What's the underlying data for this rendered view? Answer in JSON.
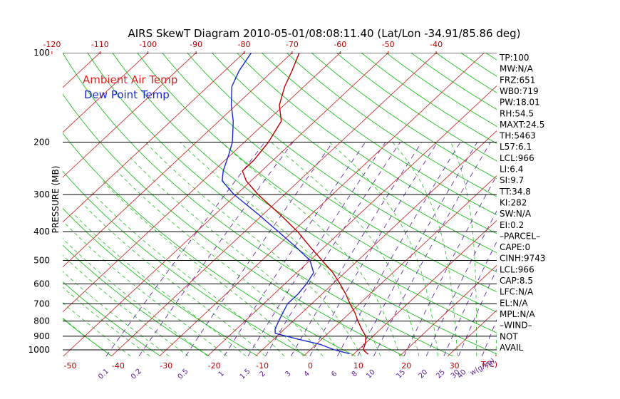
{
  "chart_data": {
    "type": "line",
    "title": "AIRS SkewT Diagram 2010-05-01/08:08:11.40 (Lat/Lon -34.91/85.86 deg)",
    "ylabel": "PRESSURE (MB)",
    "xlabel": "T(C)",
    "mixing_ratio_label": "w(g/kg)",
    "y_scale": "log",
    "ylim": [
      1050,
      100
    ],
    "xlim": [
      -52,
      43
    ],
    "pressure_ticks": [
      100,
      200,
      300,
      400,
      500,
      600,
      700,
      800,
      900,
      1000
    ],
    "pressure_tick_labels": [
      "100",
      "200",
      "300",
      "400",
      "500",
      "600",
      "700",
      "800",
      "900",
      "1000"
    ],
    "temp_ticks_bottom": [
      -50,
      -40,
      -30,
      -20,
      -10,
      0,
      10,
      20,
      30
    ],
    "temp_tick_labels_bottom": [
      "-50",
      "-40",
      "-30",
      "-20",
      "-10",
      "0",
      "10",
      "20",
      "30"
    ],
    "temp_ticks_top": [
      -120,
      -110,
      -100,
      -90,
      -80,
      -70,
      -60,
      -50,
      -40
    ],
    "temp_tick_labels_top": [
      "-120",
      "-110",
      "-100",
      "-90",
      "-80",
      "-70",
      "-60",
      "-50",
      "-40"
    ],
    "mixing_ratio_values": [
      0.1,
      0.2,
      0.5,
      1,
      1.5,
      2,
      3,
      4,
      6,
      8,
      10,
      15,
      20,
      25,
      30,
      40
    ],
    "mixing_ratio_labels": [
      "0.1",
      "0.2",
      "0.5",
      "1",
      "1.5",
      "2",
      "3",
      "4",
      "6",
      "8",
      "10",
      "15",
      "20",
      "25",
      "30",
      "40"
    ],
    "legend": [
      {
        "label": "Ambient Air Temp",
        "color": "#e02020"
      },
      {
        "label": "Dew Point Temp",
        "color": "#1a2ad0"
      }
    ],
    "series": [
      {
        "name": "Ambient Air Temp",
        "color": "#c00000",
        "points": [
          {
            "p": 1035,
            "t": 13
          },
          {
            "p": 1000,
            "t": 11
          },
          {
            "p": 950,
            "t": 10
          },
          {
            "p": 900,
            "t": 8.5
          },
          {
            "p": 850,
            "t": 6
          },
          {
            "p": 800,
            "t": 3.5
          },
          {
            "p": 750,
            "t": 1
          },
          {
            "p": 700,
            "t": -2
          },
          {
            "p": 650,
            "t": -5
          },
          {
            "p": 600,
            "t": -8.5
          },
          {
            "p": 550,
            "t": -12.5
          },
          {
            "p": 500,
            "t": -17.5
          },
          {
            "p": 450,
            "t": -23
          },
          {
            "p": 400,
            "t": -29
          },
          {
            "p": 350,
            "t": -36.5
          },
          {
            "p": 300,
            "t": -45.5
          },
          {
            "p": 270,
            "t": -51
          },
          {
            "p": 250,
            "t": -54
          },
          {
            "p": 230,
            "t": -54
          },
          {
            "p": 200,
            "t": -55
          },
          {
            "p": 170,
            "t": -57
          },
          {
            "p": 150,
            "t": -61
          },
          {
            "p": 130,
            "t": -64
          },
          {
            "p": 115,
            "t": -66
          },
          {
            "p": 100,
            "t": -68.5
          }
        ]
      },
      {
        "name": "Dew Point Temp",
        "color": "#1a2ad0",
        "points": [
          {
            "p": 1030,
            "t": 9
          },
          {
            "p": 1000,
            "t": 5
          },
          {
            "p": 960,
            "t": 1
          },
          {
            "p": 920,
            "t": -5
          },
          {
            "p": 880,
            "t": -11
          },
          {
            "p": 850,
            "t": -12
          },
          {
            "p": 800,
            "t": -13
          },
          {
            "p": 750,
            "t": -14
          },
          {
            "p": 700,
            "t": -15
          },
          {
            "p": 650,
            "t": -15
          },
          {
            "p": 600,
            "t": -15.5
          },
          {
            "p": 550,
            "t": -16.5
          },
          {
            "p": 500,
            "t": -20
          },
          {
            "p": 450,
            "t": -26
          },
          {
            "p": 400,
            "t": -33
          },
          {
            "p": 350,
            "t": -41
          },
          {
            "p": 300,
            "t": -50.5
          },
          {
            "p": 270,
            "t": -56
          },
          {
            "p": 250,
            "t": -58
          },
          {
            "p": 220,
            "t": -60.5
          },
          {
            "p": 200,
            "t": -62.5
          },
          {
            "p": 170,
            "t": -67
          },
          {
            "p": 150,
            "t": -71
          },
          {
            "p": 130,
            "t": -75
          },
          {
            "p": 115,
            "t": -77
          },
          {
            "p": 100,
            "t": -78.5
          }
        ]
      }
    ],
    "indices": [
      "TP:100",
      "MW:N/A",
      "FRZ:651",
      "WB0:719",
      "PW:18.01",
      "RH:54.5",
      "MAXT:24.5",
      "TH:5463",
      "L57:6.1",
      "LCL:966",
      "LI:6.4",
      "SI:9.7",
      "TT:34.8",
      "KI:282",
      "SW:N/A",
      "EI:0.2",
      "–PARCEL–",
      "CAPE:0",
      "CINH:9743",
      "LCL:966",
      "CAP:8.5",
      "LFC:N/A",
      "EL:N/A",
      "MPL:N/A",
      "–WIND–",
      "NOT",
      "AVAIL"
    ],
    "colors": {
      "temperature": "#c00000",
      "dewpoint": "#1a2ad0",
      "isotherms": "#d03030",
      "dry_adiabats": "#20c020",
      "moist_adiabats": "#20c020",
      "mixing_ratio": "#6a2ab0",
      "isobars": "#000000",
      "top_axis_labels": "#c00000",
      "bottom_axis_labels": "#c00000",
      "mixing_labels": "#5a1a9a"
    }
  }
}
